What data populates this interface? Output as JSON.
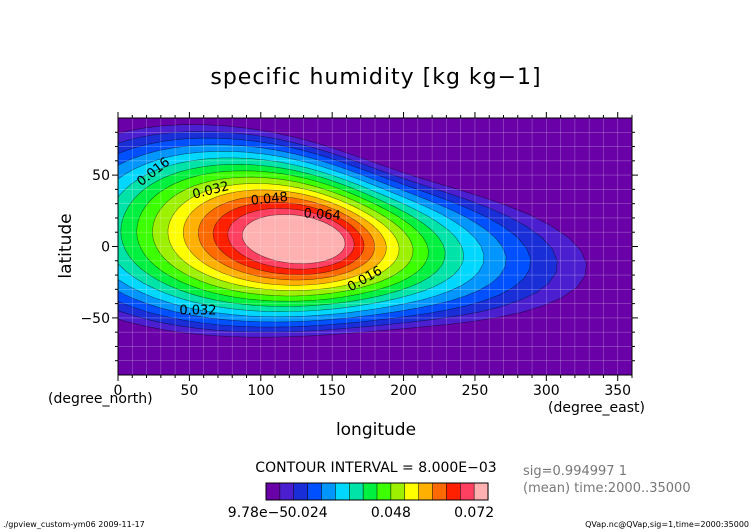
{
  "chart_data": {
    "type": "contour",
    "title": "specific humidity [kg kg−1]",
    "xlabel": "longitude",
    "ylabel": "latitude",
    "x_unit": "(degree_east)",
    "y_unit": "(degree_north)",
    "xlim": [
      0,
      360
    ],
    "ylim": [
      -90,
      90
    ],
    "x_ticks": [
      "0",
      "50",
      "100",
      "150",
      "200",
      "250",
      "300",
      "350"
    ],
    "y_ticks": [
      "50",
      "0",
      "−50"
    ],
    "grid": true,
    "contour_interval_text": "CONTOUR INTERVAL = 8.000E−03",
    "contour_labels": [
      "0.016",
      "0.032",
      "0.048",
      "0.064",
      "0.016",
      "0.032"
    ],
    "levels": [
      0.008,
      0.016,
      0.024,
      0.032,
      0.04,
      0.048,
      0.056,
      0.064,
      0.072,
      0.08
    ],
    "peak": {
      "lon": 120,
      "lat": 5,
      "value": 0.08
    },
    "colorbar": {
      "labels": [
        "9.78e−5",
        "0.024",
        "0.048",
        "0.072"
      ],
      "colors": [
        "#6a00a8",
        "#4b1fd0",
        "#1a2ed8",
        "#0050ff",
        "#0095ff",
        "#00d7ff",
        "#00e3a8",
        "#00f040",
        "#3cff00",
        "#9cf000",
        "#ffff00",
        "#ffb000",
        "#ff6a00",
        "#ff2000",
        "#ff4060",
        "#ffb0b0"
      ]
    },
    "info": [
      "sig=0.994997 1",
      "(mean) time:2000..35000"
    ],
    "footer_left": "./gpview_custom-ym06  2009-11-17",
    "footer_right": "QVap.nc@QVap,sig=1,time=2000:35000"
  }
}
